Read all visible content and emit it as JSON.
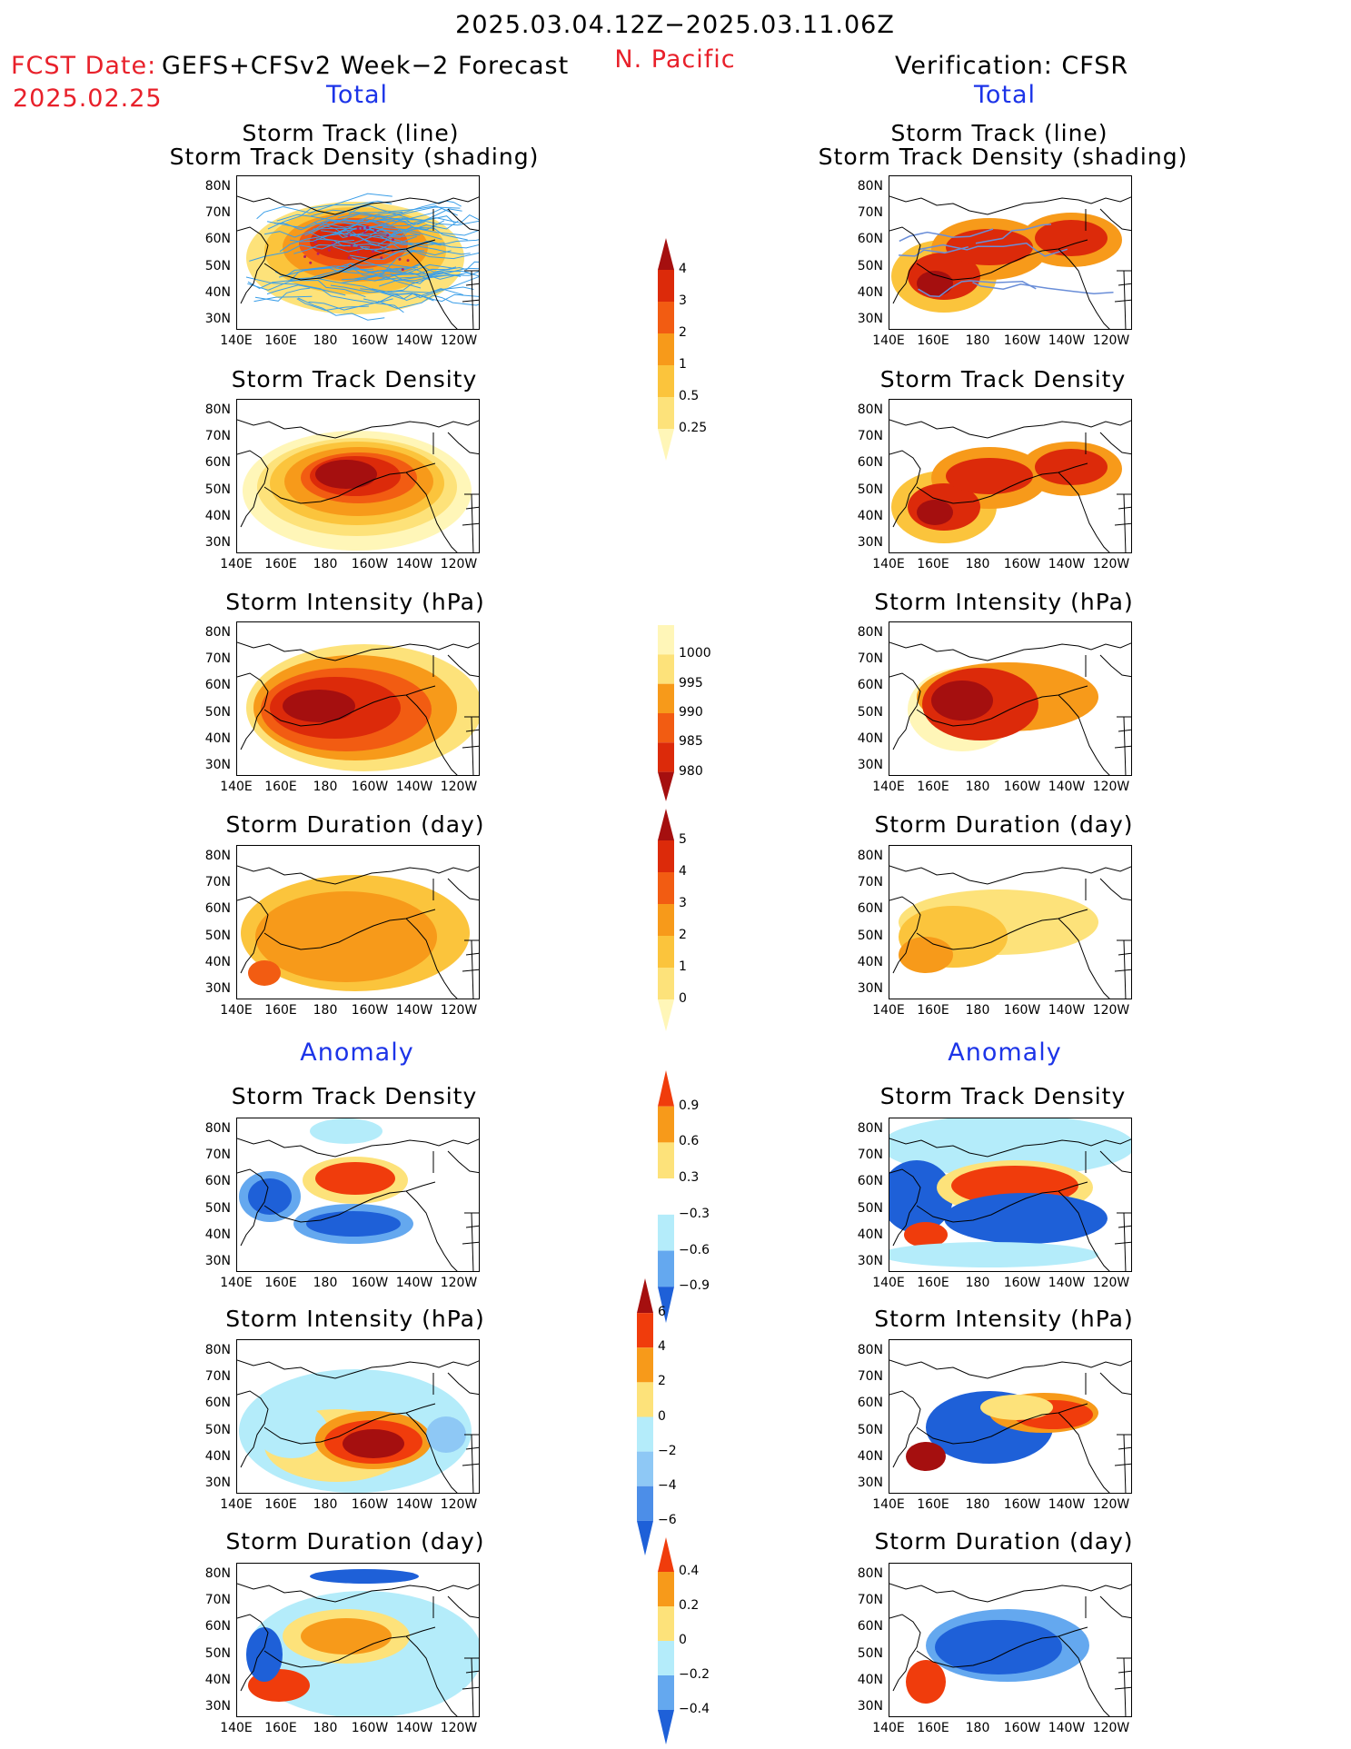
{
  "header": {
    "date_range": "2025.03.04.12Z−2025.03.11.06Z",
    "region": "N. Pacific",
    "fcst_label": "FCST Date:",
    "fcst_model": "GEFS+CFSv2 Week−2 Forecast",
    "fcst_date": "2025.02.25",
    "verification": "Verification: CFSR"
  },
  "sections": {
    "total": "Total",
    "anomaly": "Anomaly"
  },
  "panel_titles": {
    "track_line": "Storm Track (line)",
    "track_shading": "Storm Track Density (shading)",
    "density": "Storm Track Density",
    "intensity": "Storm Intensity (hPa)",
    "duration": "Storm Duration (day)"
  },
  "axes": {
    "lat_ticks": [
      "80N",
      "70N",
      "60N",
      "50N",
      "40N",
      "30N"
    ],
    "lon_ticks": [
      "140E",
      "160E",
      "180",
      "160W",
      "140W",
      "120W"
    ]
  },
  "colorbars": {
    "density_total": {
      "labels": [
        "4",
        "3",
        "2",
        "1",
        "0.5",
        "0.25"
      ],
      "colors": [
        "#a50f0f",
        "#dc2a0a",
        "#f25c12",
        "#f79a1a",
        "#fbc43c",
        "#fde27a",
        "#fff6b8"
      ]
    },
    "intensity_total": {
      "labels": [
        "1000",
        "995",
        "990",
        "985",
        "980"
      ],
      "colors": [
        "#fff6b8",
        "#fde27a",
        "#f79a1a",
        "#f25c12",
        "#dc2a0a",
        "#a50f0f"
      ]
    },
    "duration_total": {
      "labels": [
        "5",
        "4",
        "3",
        "2",
        "1",
        "0"
      ],
      "colors": [
        "#a50f0f",
        "#dc2a0a",
        "#f25c12",
        "#f79a1a",
        "#fbc43c",
        "#fde27a",
        "#fff6b8"
      ]
    },
    "density_anom": {
      "labels": [
        "0.9",
        "0.6",
        "0.3",
        "−0.3",
        "−0.6",
        "−0.9"
      ],
      "colors": [
        "#f03c0c",
        "#f79a1a",
        "#fde27a",
        "#ffffff",
        "#b4ecfa",
        "#64a8ef",
        "#1e60d8"
      ]
    },
    "intensity_anom": {
      "labels": [
        "6",
        "4",
        "2",
        "0",
        "−2",
        "−4",
        "−6"
      ],
      "colors": [
        "#a50f0f",
        "#f03c0c",
        "#f79a1a",
        "#fde27a",
        "#b4ecfa",
        "#8ec8f5",
        "#4c8ee8",
        "#1e60d8"
      ]
    },
    "duration_anom": {
      "labels": [
        "0.4",
        "0.2",
        "0",
        "−0.2",
        "−0.4"
      ],
      "colors": [
        "#f03c0c",
        "#f79a1a",
        "#fde27a",
        "#b4ecfa",
        "#64a8ef",
        "#1e60d8"
      ]
    }
  },
  "palette": {
    "track_lines_forecast": "#3a9ee8",
    "track_lines_obs": "#6a8ed8",
    "coastline": "#000000"
  }
}
